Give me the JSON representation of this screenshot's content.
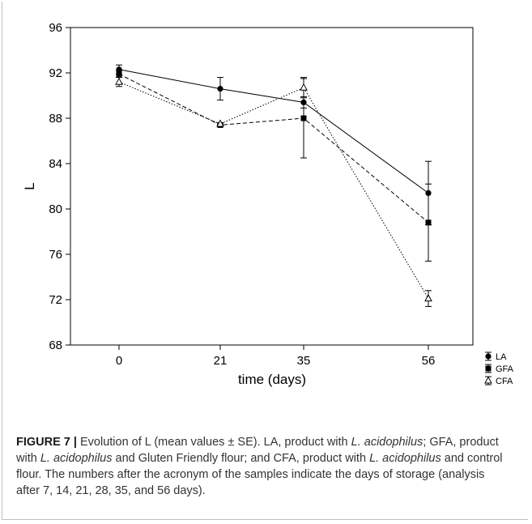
{
  "chart_data": {
    "type": "line",
    "title": "",
    "xlabel": "time (days)",
    "ylabel": "L",
    "categories": [
      "0",
      "21",
      "35",
      "56"
    ],
    "ylim": [
      68,
      96
    ],
    "yticks": [
      "96",
      "92",
      "88",
      "84",
      "80",
      "76",
      "72",
      "68"
    ],
    "grid": false,
    "legend_position": "bottom-right",
    "series": [
      {
        "name": "LA",
        "values": [
          92.3,
          90.6,
          89.4,
          81.4
        ],
        "errors": [
          0.4,
          1.0,
          0.5,
          2.8
        ],
        "marker": "circle",
        "dash": "solid"
      },
      {
        "name": "GFA",
        "values": [
          91.9,
          87.4,
          88.0,
          78.8
        ],
        "errors": [
          0.3,
          0.1,
          3.5,
          3.4
        ],
        "marker": "square",
        "dash": "dashed"
      },
      {
        "name": "CFA",
        "values": [
          91.2,
          87.5,
          90.7,
          72.1
        ],
        "errors": [
          0.4,
          0.1,
          0.9,
          0.7
        ],
        "marker": "triangle",
        "dash": "dotted"
      }
    ]
  },
  "caption": {
    "label": "FIGURE 7 |",
    "parts": [
      {
        "text": " Evolution of L (mean values ± SE). LA, product with ",
        "italic": false
      },
      {
        "text": "L. acidophilus",
        "italic": true
      },
      {
        "text": "; GFA, product with ",
        "italic": false
      },
      {
        "text": "L. acidophilus",
        "italic": true
      },
      {
        "text": " and Gluten Friendly flour; and CFA, product with ",
        "italic": false
      },
      {
        "text": "L. acidophilus",
        "italic": true
      },
      {
        "text": " and control flour. The numbers after the acronym of the samples indicate the days of storage (analysis after 7, 14, 21, 28, 35, and 56 days).",
        "italic": false
      }
    ]
  }
}
